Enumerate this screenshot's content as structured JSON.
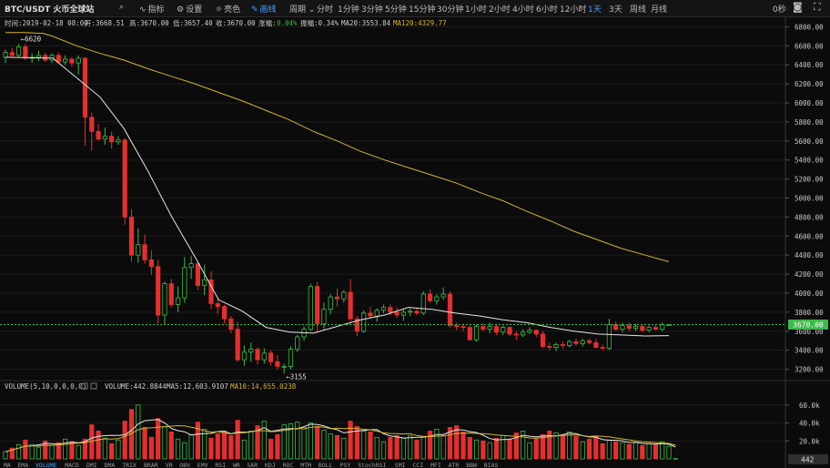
{
  "toolbar": {
    "symbol": "BTC/USDT 火币全球站",
    "search_icon": "search-icon",
    "indicators": "指标",
    "settings": "设置",
    "theme": "亮色",
    "draw": "画线",
    "period": "周期",
    "intervals": [
      "分时",
      "1分钟",
      "3分钟",
      "5分钟",
      "15分钟",
      "30分钟",
      "1小时",
      "2小时",
      "4小时",
      "6小时",
      "12小时",
      "1天",
      "3天",
      "周线",
      "月线"
    ],
    "active_interval": "1天",
    "countdown": "0秒",
    "camera_icon": "camera-icon",
    "fullscreen_icon": "fullscreen-icon"
  },
  "info": {
    "time_label": "时间:2019-02-18 08:00",
    "open_label": "开:3668.51",
    "high_label": "高:3670.00",
    "low_label": "低:3657.40",
    "close_label": "收:3670.00",
    "change_prefix": "涨幅:",
    "change_value": "0.04%",
    "amplitude_label": "振幅:0.34%",
    "ma20_label": "MA20:3553.84",
    "ma120_label": "MA120:4329.77"
  },
  "volume_info": {
    "title": "VOLUME(5,10,0,0,0,0)",
    "volume_label": "VOLUME:442.8844",
    "ma5_label": "MA5:12,603.9107",
    "ma10_label": "MA10:14,655.0238"
  },
  "annotations": {
    "high": "6620",
    "low": "3155"
  },
  "last_price_label": "3670.00",
  "last_volume_label": "442",
  "indicator_tabs": [
    "MA",
    "EMA",
    "VOLUME",
    "MACD",
    "DMI",
    "DMA",
    "TRIX",
    "BRAR",
    "VR",
    "OBV",
    "EMV",
    "RSI",
    "WR",
    "SAR",
    "KDJ",
    "ROC",
    "MTM",
    "BOLL",
    "PSY",
    "StochRSI",
    "SMI",
    "CCI",
    "MFI",
    "ATR",
    "BBW",
    "BIAS"
  ],
  "active_indicator_tab": "VOLUME",
  "colors": {
    "up": "#3dbb4a",
    "down": "#e62e2e",
    "ma20": "#e6e6e6",
    "ma120": "#d4b42c",
    "active": "#4aa3ff",
    "change": "#3dbb4a"
  },
  "chart_data": [
    {
      "type": "candlestick",
      "y_ticks": [
        3200,
        3400,
        3600,
        3800,
        4000,
        4200,
        4400,
        4600,
        4800,
        5000,
        5200,
        5400,
        5600,
        5800,
        6000,
        6200,
        6400,
        6600,
        6800
      ],
      "ylim": [
        3100,
        6900
      ],
      "candles": [
        {
          "o": 6480,
          "h": 6560,
          "l": 6420,
          "c": 6530
        },
        {
          "o": 6530,
          "h": 6580,
          "l": 6480,
          "c": 6500
        },
        {
          "o": 6500,
          "h": 6620,
          "l": 6480,
          "c": 6590
        },
        {
          "o": 6590,
          "h": 6620,
          "l": 6450,
          "c": 6470
        },
        {
          "o": 6470,
          "h": 6520,
          "l": 6420,
          "c": 6480
        },
        {
          "o": 6480,
          "h": 6550,
          "l": 6440,
          "c": 6500
        },
        {
          "o": 6500,
          "h": 6530,
          "l": 6430,
          "c": 6450
        },
        {
          "o": 6450,
          "h": 6520,
          "l": 6420,
          "c": 6500
        },
        {
          "o": 6500,
          "h": 6530,
          "l": 6410,
          "c": 6430
        },
        {
          "o": 6430,
          "h": 6500,
          "l": 6400,
          "c": 6460
        },
        {
          "o": 6460,
          "h": 6480,
          "l": 6380,
          "c": 6420
        },
        {
          "o": 6420,
          "h": 6500,
          "l": 6300,
          "c": 6470
        },
        {
          "o": 6470,
          "h": 6480,
          "l": 5550,
          "c": 5850
        },
        {
          "o": 5850,
          "h": 5900,
          "l": 5500,
          "c": 5700
        },
        {
          "o": 5700,
          "h": 5780,
          "l": 5600,
          "c": 5620
        },
        {
          "o": 5620,
          "h": 5740,
          "l": 5560,
          "c": 5650
        },
        {
          "o": 5650,
          "h": 5700,
          "l": 5520,
          "c": 5590
        },
        {
          "o": 5590,
          "h": 5650,
          "l": 5560,
          "c": 5610
        },
        {
          "o": 5610,
          "h": 5630,
          "l": 4720,
          "c": 4800
        },
        {
          "o": 4800,
          "h": 4880,
          "l": 4330,
          "c": 4400
        },
        {
          "o": 4400,
          "h": 4680,
          "l": 4320,
          "c": 4510
        },
        {
          "o": 4510,
          "h": 4620,
          "l": 4310,
          "c": 4350
        },
        {
          "o": 4350,
          "h": 4450,
          "l": 4190,
          "c": 4280
        },
        {
          "o": 4280,
          "h": 4350,
          "l": 3680,
          "c": 3770
        },
        {
          "o": 3770,
          "h": 4120,
          "l": 3670,
          "c": 4100
        },
        {
          "o": 4100,
          "h": 4150,
          "l": 3850,
          "c": 3880
        },
        {
          "o": 3880,
          "h": 4070,
          "l": 3800,
          "c": 3950
        },
        {
          "o": 3950,
          "h": 4380,
          "l": 3900,
          "c": 4270
        },
        {
          "o": 4270,
          "h": 4390,
          "l": 4150,
          "c": 4310
        },
        {
          "o": 4310,
          "h": 4320,
          "l": 4030,
          "c": 4080
        },
        {
          "o": 4080,
          "h": 4300,
          "l": 3980,
          "c": 4140
        },
        {
          "o": 4140,
          "h": 4230,
          "l": 3830,
          "c": 3890
        },
        {
          "o": 3890,
          "h": 3950,
          "l": 3780,
          "c": 3860
        },
        {
          "o": 3860,
          "h": 3880,
          "l": 3680,
          "c": 3730
        },
        {
          "o": 3730,
          "h": 3760,
          "l": 3580,
          "c": 3620
        },
        {
          "o": 3620,
          "h": 3700,
          "l": 3280,
          "c": 3300
        },
        {
          "o": 3300,
          "h": 3450,
          "l": 3240,
          "c": 3380
        },
        {
          "o": 3380,
          "h": 3480,
          "l": 3280,
          "c": 3410
        },
        {
          "o": 3410,
          "h": 3430,
          "l": 3250,
          "c": 3300
        },
        {
          "o": 3300,
          "h": 3420,
          "l": 3260,
          "c": 3370
        },
        {
          "o": 3370,
          "h": 3400,
          "l": 3240,
          "c": 3280
        },
        {
          "o": 3280,
          "h": 3350,
          "l": 3200,
          "c": 3230
        },
        {
          "o": 3230,
          "h": 3260,
          "l": 3155,
          "c": 3230
        },
        {
          "o": 3230,
          "h": 3440,
          "l": 3200,
          "c": 3410
        },
        {
          "o": 3410,
          "h": 3560,
          "l": 3380,
          "c": 3540
        },
        {
          "o": 3540,
          "h": 3650,
          "l": 3500,
          "c": 3620
        },
        {
          "o": 3620,
          "h": 4100,
          "l": 3600,
          "c": 4070
        },
        {
          "o": 4070,
          "h": 4120,
          "l": 3580,
          "c": 3680
        },
        {
          "o": 3680,
          "h": 3900,
          "l": 3620,
          "c": 3830
        },
        {
          "o": 3830,
          "h": 3990,
          "l": 3780,
          "c": 3960
        },
        {
          "o": 3960,
          "h": 4050,
          "l": 3860,
          "c": 3940
        },
        {
          "o": 3940,
          "h": 4030,
          "l": 3900,
          "c": 4010
        },
        {
          "o": 4010,
          "h": 4150,
          "l": 3700,
          "c": 3730
        },
        {
          "o": 3730,
          "h": 3760,
          "l": 3550,
          "c": 3600
        },
        {
          "o": 3600,
          "h": 3820,
          "l": 3580,
          "c": 3790
        },
        {
          "o": 3790,
          "h": 3860,
          "l": 3740,
          "c": 3760
        },
        {
          "o": 3760,
          "h": 3840,
          "l": 3700,
          "c": 3820
        },
        {
          "o": 3820,
          "h": 3880,
          "l": 3790,
          "c": 3850
        },
        {
          "o": 3850,
          "h": 3880,
          "l": 3770,
          "c": 3800
        },
        {
          "o": 3800,
          "h": 3850,
          "l": 3740,
          "c": 3770
        },
        {
          "o": 3770,
          "h": 3830,
          "l": 3710,
          "c": 3800
        },
        {
          "o": 3800,
          "h": 3840,
          "l": 3760,
          "c": 3810
        },
        {
          "o": 3810,
          "h": 3850,
          "l": 3770,
          "c": 3790
        },
        {
          "o": 3790,
          "h": 4020,
          "l": 3770,
          "c": 3990
        },
        {
          "o": 3990,
          "h": 4040,
          "l": 3900,
          "c": 3920
        },
        {
          "o": 3920,
          "h": 3990,
          "l": 3880,
          "c": 3960
        },
        {
          "o": 3960,
          "h": 4060,
          "l": 3930,
          "c": 3990
        },
        {
          "o": 3990,
          "h": 4020,
          "l": 3640,
          "c": 3660
        },
        {
          "o": 3660,
          "h": 3690,
          "l": 3610,
          "c": 3650
        },
        {
          "o": 3650,
          "h": 3680,
          "l": 3600,
          "c": 3640
        },
        {
          "o": 3640,
          "h": 3660,
          "l": 3500,
          "c": 3510
        },
        {
          "o": 3510,
          "h": 3670,
          "l": 3490,
          "c": 3650
        },
        {
          "o": 3650,
          "h": 3680,
          "l": 3600,
          "c": 3620
        },
        {
          "o": 3620,
          "h": 3690,
          "l": 3580,
          "c": 3650
        },
        {
          "o": 3650,
          "h": 3670,
          "l": 3560,
          "c": 3590
        },
        {
          "o": 3590,
          "h": 3660,
          "l": 3560,
          "c": 3640
        },
        {
          "o": 3640,
          "h": 3650,
          "l": 3550,
          "c": 3570
        },
        {
          "o": 3570,
          "h": 3600,
          "l": 3510,
          "c": 3560
        },
        {
          "o": 3560,
          "h": 3620,
          "l": 3540,
          "c": 3590
        },
        {
          "o": 3590,
          "h": 3640,
          "l": 3570,
          "c": 3610
        },
        {
          "o": 3610,
          "h": 3620,
          "l": 3540,
          "c": 3570
        },
        {
          "o": 3570,
          "h": 3600,
          "l": 3420,
          "c": 3440
        },
        {
          "o": 3440,
          "h": 3480,
          "l": 3400,
          "c": 3430
        },
        {
          "o": 3430,
          "h": 3480,
          "l": 3390,
          "c": 3460
        },
        {
          "o": 3460,
          "h": 3490,
          "l": 3420,
          "c": 3450
        },
        {
          "o": 3450,
          "h": 3510,
          "l": 3430,
          "c": 3490
        },
        {
          "o": 3490,
          "h": 3520,
          "l": 3450,
          "c": 3470
        },
        {
          "o": 3470,
          "h": 3520,
          "l": 3440,
          "c": 3500
        },
        {
          "o": 3500,
          "h": 3520,
          "l": 3460,
          "c": 3480
        },
        {
          "o": 3480,
          "h": 3520,
          "l": 3420,
          "c": 3430
        },
        {
          "o": 3430,
          "h": 3460,
          "l": 3400,
          "c": 3420
        },
        {
          "o": 3420,
          "h": 3730,
          "l": 3400,
          "c": 3670
        },
        {
          "o": 3670,
          "h": 3700,
          "l": 3600,
          "c": 3620
        },
        {
          "o": 3620,
          "h": 3690,
          "l": 3590,
          "c": 3660
        },
        {
          "o": 3660,
          "h": 3690,
          "l": 3600,
          "c": 3630
        },
        {
          "o": 3630,
          "h": 3680,
          "l": 3600,
          "c": 3650
        },
        {
          "o": 3650,
          "h": 3670,
          "l": 3590,
          "c": 3610
        },
        {
          "o": 3610,
          "h": 3660,
          "l": 3590,
          "c": 3640
        },
        {
          "o": 3640,
          "h": 3670,
          "l": 3610,
          "c": 3620
        },
        {
          "o": 3620,
          "h": 3690,
          "l": 3600,
          "c": 3668
        },
        {
          "o": 3668,
          "h": 3670,
          "l": 3657,
          "c": 3670
        }
      ],
      "ma20": [
        [
          0,
          6480
        ],
        [
          10,
          6470
        ],
        [
          20,
          6060
        ],
        [
          25,
          5730
        ],
        [
          30,
          5290
        ],
        [
          35,
          4810
        ],
        [
          40,
          4380
        ],
        [
          45,
          3930
        ],
        [
          50,
          3810
        ],
        [
          55,
          3640
        ],
        [
          60,
          3590
        ],
        [
          65,
          3580
        ],
        [
          70,
          3650
        ],
        [
          75,
          3720
        ],
        [
          80,
          3770
        ],
        [
          85,
          3850
        ],
        [
          90,
          3830
        ],
        [
          95,
          3790
        ],
        [
          100,
          3760
        ],
        [
          105,
          3720
        ],
        [
          110,
          3690
        ],
        [
          115,
          3640
        ],
        [
          120,
          3600
        ],
        [
          125,
          3570
        ],
        [
          130,
          3560
        ],
        [
          135,
          3550
        ],
        [
          140,
          3554
        ]
      ],
      "ma120": [
        [
          0,
          6740
        ],
        [
          4,
          6740
        ],
        [
          8,
          6730
        ],
        [
          10,
          6700
        ],
        [
          15,
          6600
        ],
        [
          20,
          6520
        ],
        [
          25,
          6450
        ],
        [
          30,
          6360
        ],
        [
          35,
          6280
        ],
        [
          40,
          6200
        ],
        [
          45,
          6110
        ],
        [
          50,
          6020
        ],
        [
          55,
          5920
        ],
        [
          60,
          5820
        ],
        [
          65,
          5700
        ],
        [
          70,
          5600
        ],
        [
          75,
          5490
        ],
        [
          80,
          5400
        ],
        [
          85,
          5320
        ],
        [
          90,
          5240
        ],
        [
          95,
          5160
        ],
        [
          100,
          5060
        ],
        [
          105,
          4970
        ],
        [
          110,
          4860
        ],
        [
          115,
          4760
        ],
        [
          120,
          4650
        ],
        [
          125,
          4560
        ],
        [
          130,
          4470
        ],
        [
          135,
          4400
        ],
        [
          140,
          4330
        ]
      ]
    },
    {
      "type": "bar",
      "y_ticks": [
        20000,
        40000,
        60000
      ],
      "ylim": [
        0,
        75000
      ],
      "tick_labels": [
        "20.0k",
        "40.0k",
        "60.0k"
      ],
      "volumes": [
        8000,
        12000,
        16000,
        21000,
        16000,
        13000,
        20000,
        15000,
        18000,
        22000,
        19000,
        15000,
        22000,
        38000,
        31000,
        23000,
        17000,
        21000,
        42000,
        55000,
        60000,
        35000,
        24000,
        45000,
        36000,
        30000,
        22000,
        18000,
        27000,
        41000,
        33000,
        23000,
        28000,
        30000,
        26000,
        43000,
        21000,
        31000,
        37000,
        42000,
        22000,
        27000,
        38000,
        39000,
        41000,
        35000,
        40000,
        36000,
        32000,
        28000,
        26000,
        23000,
        42000,
        36000,
        31000,
        30000,
        24000,
        19000,
        24000,
        26000,
        23000,
        26000,
        21000,
        25000,
        31000,
        33000,
        26000,
        35000,
        37000,
        30000,
        24000,
        21000,
        20000,
        18000,
        23000,
        26000,
        22000,
        29000,
        31000,
        18000,
        22000,
        27000,
        31000,
        29000,
        26000,
        30000,
        25000,
        19000,
        22000,
        25000,
        17000,
        21000,
        19000,
        18000,
        16000,
        18000,
        15000,
        17000,
        16000,
        19000,
        14000,
        442
      ]
    }
  ]
}
